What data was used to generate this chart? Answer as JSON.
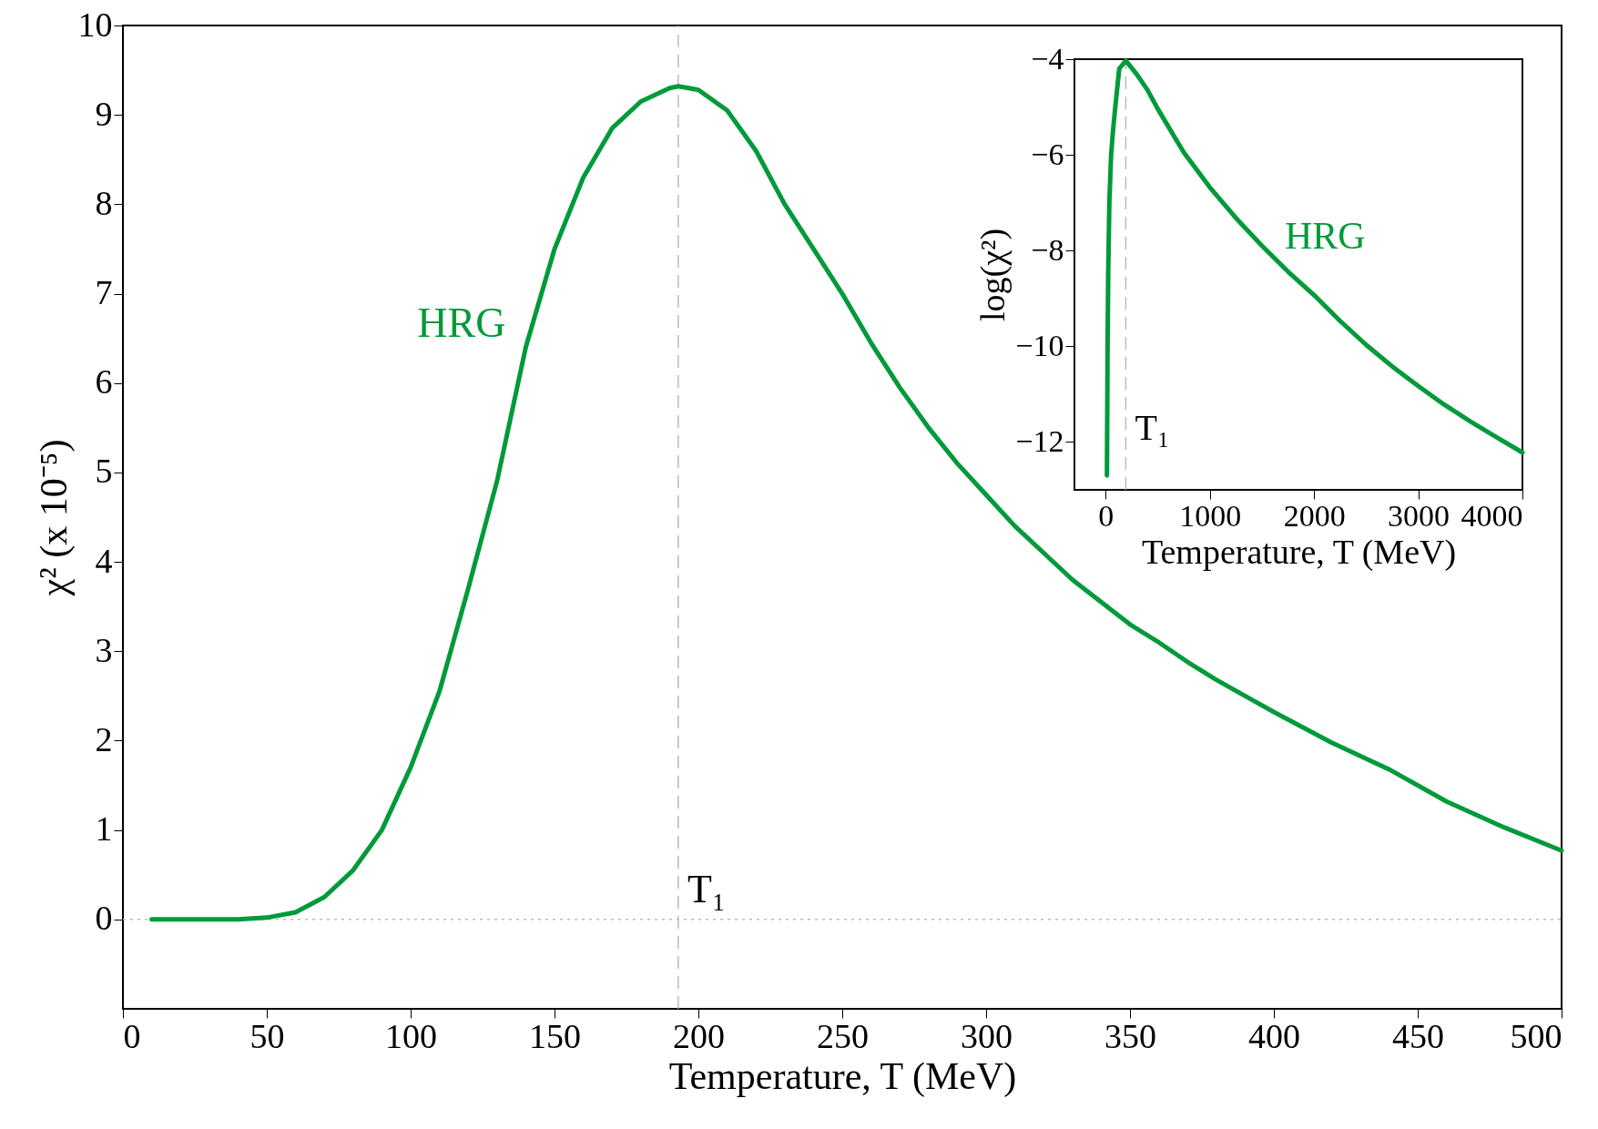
{
  "chart_data": [
    {
      "type": "line",
      "xlabel": "Temperature, T (MeV)",
      "ylabel": "χ² (x 10⁻⁵)",
      "xlim": [
        0,
        500
      ],
      "ylim": [
        -1,
        10
      ],
      "xticks": [
        0,
        50,
        100,
        150,
        200,
        250,
        300,
        350,
        400,
        450,
        500
      ],
      "yticks": [
        0,
        1,
        2,
        3,
        4,
        5,
        6,
        7,
        8,
        9,
        10
      ],
      "grid": false,
      "line_style": "solid",
      "series": [
        {
          "name": "HRG",
          "color": "#009a3a",
          "x": [
            10,
            20,
            30,
            40,
            50,
            60,
            70,
            80,
            90,
            100,
            110,
            120,
            130,
            140,
            150,
            160,
            170,
            180,
            190,
            193,
            200,
            210,
            220,
            230,
            240,
            250,
            260,
            270,
            280,
            290,
            300,
            310,
            320,
            330,
            340,
            350,
            360,
            370,
            380,
            390,
            400,
            420,
            440,
            460,
            480,
            500
          ],
          "values": [
            0,
            0,
            0,
            0,
            0.02,
            0.08,
            0.25,
            0.55,
            1.0,
            1.7,
            2.55,
            3.7,
            4.9,
            6.4,
            7.5,
            8.3,
            8.85,
            9.15,
            9.3,
            9.32,
            9.28,
            9.05,
            8.6,
            8.0,
            7.5,
            7.0,
            6.45,
            5.95,
            5.5,
            5.1,
            4.75,
            4.4,
            4.1,
            3.8,
            3.55,
            3.3,
            3.1,
            2.88,
            2.68,
            2.5,
            2.32,
            1.98,
            1.68,
            1.32,
            1.03,
            0.77
          ]
        }
      ],
      "ref_lines": [
        {
          "axis": "x",
          "value": 193,
          "label": "T₁",
          "color": "#bbbbbb",
          "line_style": "dashed"
        },
        {
          "axis": "y",
          "value": 0,
          "color": "#bbbbbb",
          "line_style": "dotted"
        }
      ]
    },
    {
      "type": "line",
      "xlabel": "Temperature, T (MeV)",
      "ylabel": "log(χ²)",
      "xlim": [
        -300,
        4000
      ],
      "ylim": [
        -13,
        -4
      ],
      "xticks": [
        0,
        1000,
        2000,
        3000,
        4000
      ],
      "yticks": [
        -12,
        -10,
        -8,
        -6,
        -4
      ],
      "grid": false,
      "line_style": "solid",
      "series": [
        {
          "name": "HRG",
          "color": "#009a3a",
          "x": [
            12,
            18,
            24,
            35,
            52,
            70,
            92,
            130,
            193,
            300,
            400,
            500,
            750,
            1000,
            1250,
            1500,
            1750,
            2000,
            2250,
            2500,
            2750,
            3000,
            3250,
            3500,
            3750,
            4000
          ],
          "values": [
            -12.7,
            -10,
            -8.5,
            -7,
            -6,
            -5.5,
            -5,
            -4.2,
            -4.03,
            -4.32,
            -4.64,
            -5.04,
            -5.95,
            -6.68,
            -7.32,
            -7.9,
            -8.44,
            -8.93,
            -9.47,
            -9.97,
            -10.42,
            -10.83,
            -11.22,
            -11.57,
            -11.9,
            -12.22
          ]
        }
      ],
      "ref_lines": [
        {
          "axis": "x",
          "value": 193,
          "label": "T₁",
          "color": "#bbbbbb",
          "line_style": "dashed"
        }
      ]
    }
  ]
}
